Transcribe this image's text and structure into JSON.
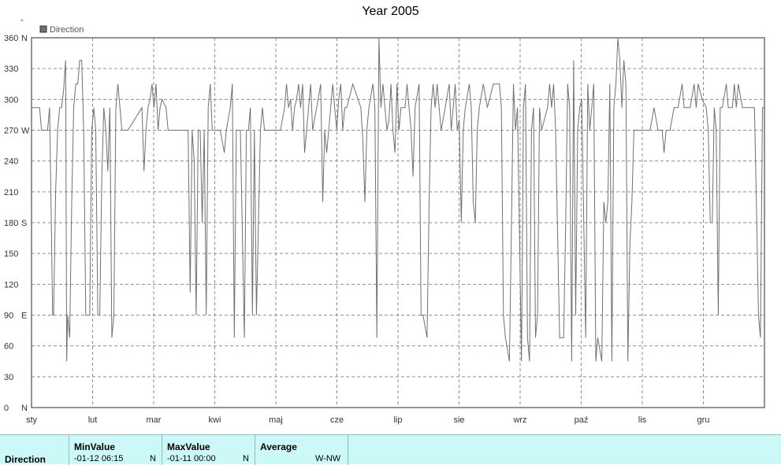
{
  "chart_data": {
    "type": "line",
    "title": "Year 2005",
    "legend": {
      "label": "Direction",
      "placement": "top-left"
    },
    "ylabel_unit": "°",
    "ylim": [
      0,
      360
    ],
    "y_ticks": [
      {
        "value": 0,
        "label": "0",
        "dir": "N"
      },
      {
        "value": 30,
        "label": "30",
        "dir": ""
      },
      {
        "value": 60,
        "label": "60",
        "dir": ""
      },
      {
        "value": 90,
        "label": "90",
        "dir": "E"
      },
      {
        "value": 120,
        "label": "120",
        "dir": ""
      },
      {
        "value": 150,
        "label": "150",
        "dir": ""
      },
      {
        "value": 180,
        "label": "180",
        "dir": "S"
      },
      {
        "value": 210,
        "label": "210",
        "dir": ""
      },
      {
        "value": 240,
        "label": "240",
        "dir": ""
      },
      {
        "value": 270,
        "label": "270",
        "dir": "W"
      },
      {
        "value": 300,
        "label": "300",
        "dir": ""
      },
      {
        "value": 330,
        "label": "330",
        "dir": ""
      },
      {
        "value": 360,
        "label": "360",
        "dir": "N"
      }
    ],
    "x_months": [
      "sty",
      "lut",
      "mar",
      "kwi",
      "maj",
      "cze",
      "lip",
      "sie",
      "wrz",
      "paź",
      "lis",
      "gru"
    ],
    "xlim_days": [
      0,
      365
    ],
    "grid": true,
    "series": [
      {
        "name": "Direction",
        "color": "#707070",
        "points": [
          [
            0,
            292
          ],
          [
            3,
            292
          ],
          [
            4,
            292
          ],
          [
            5,
            270
          ],
          [
            8,
            270
          ],
          [
            9,
            292
          ],
          [
            10,
            160
          ],
          [
            10.5,
            90
          ],
          [
            11,
            90
          ],
          [
            12,
            210
          ],
          [
            13,
            270
          ],
          [
            14,
            292
          ],
          [
            15,
            292
          ],
          [
            16,
            310
          ],
          [
            17,
            338
          ],
          [
            17.5,
            45
          ],
          [
            18,
            90
          ],
          [
            19,
            68
          ],
          [
            20,
            200
          ],
          [
            21,
            292
          ],
          [
            22,
            315
          ],
          [
            23,
            315
          ],
          [
            24,
            338
          ],
          [
            25,
            338
          ],
          [
            26,
            270
          ],
          [
            27,
            90
          ],
          [
            28,
            90
          ],
          [
            29,
            90
          ],
          [
            30,
            270
          ],
          [
            31,
            292
          ],
          [
            32,
            270
          ],
          [
            33,
            90
          ],
          [
            34,
            90
          ],
          [
            35,
            225
          ],
          [
            36,
            292
          ],
          [
            37,
            270
          ],
          [
            38,
            230
          ],
          [
            39,
            292
          ],
          [
            40,
            68
          ],
          [
            41,
            90
          ],
          [
            42,
            292
          ],
          [
            43,
            315
          ],
          [
            45,
            270
          ],
          [
            48,
            270
          ],
          [
            55,
            292
          ],
          [
            56,
            230
          ],
          [
            57,
            270
          ],
          [
            58,
            292
          ],
          [
            59,
            300
          ],
          [
            60,
            315
          ],
          [
            61,
            292
          ],
          [
            62,
            315
          ],
          [
            63,
            270
          ],
          [
            64,
            292
          ],
          [
            65,
            300
          ],
          [
            67,
            292
          ],
          [
            68,
            270
          ],
          [
            75,
            270
          ],
          [
            78,
            270
          ],
          [
            79,
            112
          ],
          [
            80,
            270
          ],
          [
            81,
            240
          ],
          [
            82,
            90
          ],
          [
            83,
            270
          ],
          [
            84,
            270
          ],
          [
            85,
            180
          ],
          [
            86,
            270
          ],
          [
            87,
            90
          ],
          [
            88,
            292
          ],
          [
            89,
            315
          ],
          [
            90,
            270
          ],
          [
            92,
            270
          ],
          [
            94,
            270
          ],
          [
            96,
            248
          ],
          [
            97,
            270
          ],
          [
            99,
            292
          ],
          [
            100,
            315
          ],
          [
            101,
            68
          ],
          [
            102,
            270
          ],
          [
            104,
            270
          ],
          [
            106,
            68
          ],
          [
            107,
            270
          ],
          [
            108,
            270
          ],
          [
            109,
            292
          ],
          [
            110,
            90
          ],
          [
            111,
            270
          ],
          [
            112,
            90
          ],
          [
            114,
            270
          ],
          [
            115,
            292
          ],
          [
            116,
            270
          ],
          [
            118,
            270
          ],
          [
            122,
            270
          ],
          [
            124,
            270
          ],
          [
            126,
            292
          ],
          [
            127,
            315
          ],
          [
            128,
            292
          ],
          [
            129,
            300
          ],
          [
            130,
            270
          ],
          [
            131,
            292
          ],
          [
            132,
            300
          ],
          [
            133,
            315
          ],
          [
            134,
            292
          ],
          [
            135,
            315
          ],
          [
            136,
            248
          ],
          [
            137,
            270
          ],
          [
            138,
            292
          ],
          [
            139,
            315
          ],
          [
            140,
            270
          ],
          [
            142,
            292
          ],
          [
            144,
            315
          ],
          [
            145,
            200
          ],
          [
            146,
            270
          ],
          [
            147,
            248
          ],
          [
            148,
            270
          ],
          [
            150,
            315
          ],
          [
            151,
            292
          ],
          [
            152,
            270
          ],
          [
            153,
            300
          ],
          [
            154,
            315
          ],
          [
            155,
            270
          ],
          [
            156,
            292
          ],
          [
            157,
            292
          ],
          [
            160,
            315
          ],
          [
            164,
            292
          ],
          [
            165,
            260
          ],
          [
            166,
            200
          ],
          [
            167,
            270
          ],
          [
            168,
            292
          ],
          [
            170,
            315
          ],
          [
            171,
            292
          ],
          [
            172,
            68
          ],
          [
            173,
            360
          ],
          [
            174,
            292
          ],
          [
            175,
            315
          ],
          [
            176,
            292
          ],
          [
            177,
            270
          ],
          [
            178,
            280
          ],
          [
            179,
            315
          ],
          [
            180,
            270
          ],
          [
            181,
            248
          ],
          [
            182,
            315
          ],
          [
            183,
            270
          ],
          [
            184,
            292
          ],
          [
            186,
            292
          ],
          [
            187,
            315
          ],
          [
            188,
            292
          ],
          [
            189,
            270
          ],
          [
            190,
            225
          ],
          [
            191,
            292
          ],
          [
            193,
            315
          ],
          [
            194,
            90
          ],
          [
            195,
            90
          ],
          [
            197,
            68
          ],
          [
            198,
            200
          ],
          [
            199,
            292
          ],
          [
            200,
            315
          ],
          [
            201,
            292
          ],
          [
            202,
            315
          ],
          [
            203,
            292
          ],
          [
            204,
            270
          ],
          [
            206,
            292
          ],
          [
            208,
            315
          ],
          [
            209,
            270
          ],
          [
            210,
            292
          ],
          [
            211,
            315
          ],
          [
            212,
            270
          ],
          [
            213,
            280
          ],
          [
            214,
            180
          ],
          [
            215,
            270
          ],
          [
            216,
            292
          ],
          [
            218,
            315
          ],
          [
            219,
            292
          ],
          [
            220,
            200
          ],
          [
            221,
            180
          ],
          [
            222,
            270
          ],
          [
            223,
            292
          ],
          [
            225,
            315
          ],
          [
            227,
            292
          ],
          [
            230,
            315
          ],
          [
            233,
            315
          ],
          [
            234,
            292
          ],
          [
            235,
            90
          ],
          [
            236,
            68
          ],
          [
            238,
            45
          ],
          [
            239,
            180
          ],
          [
            240,
            315
          ],
          [
            241,
            270
          ],
          [
            242,
            292
          ],
          [
            244,
            45
          ],
          [
            245,
            292
          ],
          [
            246,
            315
          ],
          [
            247,
            68
          ],
          [
            248,
            45
          ],
          [
            249,
            270
          ],
          [
            250,
            292
          ],
          [
            251,
            68
          ],
          [
            252,
            90
          ],
          [
            253,
            292
          ],
          [
            254,
            270
          ],
          [
            257,
            292
          ],
          [
            258,
            315
          ],
          [
            259,
            292
          ],
          [
            260,
            315
          ],
          [
            261,
            270
          ],
          [
            263,
            68
          ],
          [
            265,
            68
          ],
          [
            266,
            180
          ],
          [
            267,
            315
          ],
          [
            268,
            292
          ],
          [
            269,
            45
          ],
          [
            270,
            338
          ],
          [
            271,
            90
          ],
          [
            272,
            270
          ],
          [
            273,
            292
          ],
          [
            274,
            300
          ],
          [
            276,
            68
          ],
          [
            277,
            315
          ],
          [
            278,
            270
          ],
          [
            279,
            292
          ],
          [
            280,
            315
          ],
          [
            281,
            45
          ],
          [
            282,
            68
          ],
          [
            284,
            45
          ],
          [
            285,
            200
          ],
          [
            286,
            180
          ],
          [
            287,
            200
          ],
          [
            288,
            315
          ],
          [
            289,
            45
          ],
          [
            290,
            292
          ],
          [
            291,
            315
          ],
          [
            292,
            360
          ],
          [
            293,
            338
          ],
          [
            294,
            292
          ],
          [
            295,
            338
          ],
          [
            296,
            315
          ],
          [
            297,
            45
          ],
          [
            298,
            160
          ],
          [
            299,
            200
          ],
          [
            300,
            270
          ],
          [
            302,
            270
          ],
          [
            308,
            270
          ],
          [
            310,
            292
          ],
          [
            312,
            270
          ],
          [
            314,
            270
          ],
          [
            315,
            248
          ],
          [
            316,
            270
          ],
          [
            318,
            270
          ],
          [
            320,
            292
          ],
          [
            322,
            292
          ],
          [
            324,
            315
          ],
          [
            325,
            292
          ],
          [
            327,
            292
          ],
          [
            328,
            292
          ],
          [
            330,
            315
          ],
          [
            331,
            292
          ],
          [
            332,
            315
          ],
          [
            334,
            300
          ],
          [
            336,
            292
          ],
          [
            337,
            270
          ],
          [
            338,
            180
          ],
          [
            339,
            180
          ],
          [
            340,
            292
          ],
          [
            341,
            270
          ],
          [
            342,
            90
          ],
          [
            343,
            292
          ],
          [
            344,
            292
          ],
          [
            346,
            315
          ],
          [
            347,
            292
          ],
          [
            349,
            292
          ],
          [
            350,
            315
          ],
          [
            351,
            292
          ],
          [
            352,
            315
          ],
          [
            354,
            292
          ],
          [
            356,
            292
          ],
          [
            358,
            292
          ],
          [
            360,
            292
          ],
          [
            361,
            200
          ],
          [
            362,
            90
          ],
          [
            363,
            68
          ],
          [
            364,
            292
          ],
          [
            365,
            292
          ]
        ]
      }
    ]
  },
  "stats": {
    "row_label": "Direction",
    "min": {
      "header": "MinValue",
      "date": "-01-12  06:15",
      "dir": "N"
    },
    "max": {
      "header": "MaxValue",
      "date": "-01-11  00:00",
      "dir": "N"
    },
    "avg": {
      "header": "Average",
      "value": "W-NW"
    }
  }
}
